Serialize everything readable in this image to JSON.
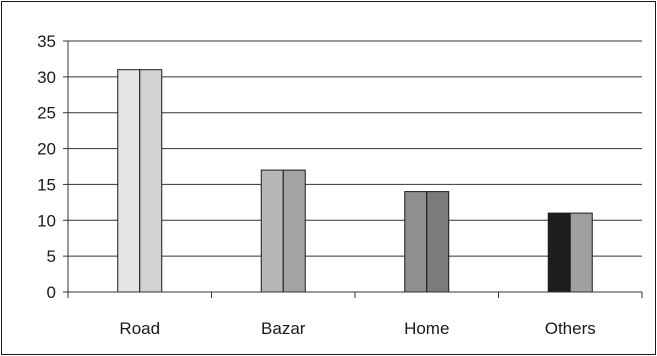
{
  "chart_data": {
    "type": "bar",
    "title": "",
    "xlabel": "",
    "ylabel": "",
    "categories": [
      "Road",
      "Bazar",
      "Home",
      "Others"
    ],
    "series": [
      {
        "values": [
          31,
          17,
          14,
          11
        ]
      },
      {
        "values": [
          31,
          17,
          14,
          11
        ]
      }
    ],
    "ylim": [
      0,
      35
    ],
    "yticks": [
      0,
      5,
      10,
      15,
      20,
      25,
      30,
      35
    ],
    "grid": true,
    "legend": "none",
    "bar_colors": [
      [
        "#e6e6e6",
        "#d2d2d2"
      ],
      [
        "#b7b7b7",
        "#a3a3a3"
      ],
      [
        "#8f8f8f",
        "#7b7b7b"
      ],
      [
        "#1e1e1e",
        "#a0a0a0"
      ]
    ],
    "line_color": "#333333"
  }
}
